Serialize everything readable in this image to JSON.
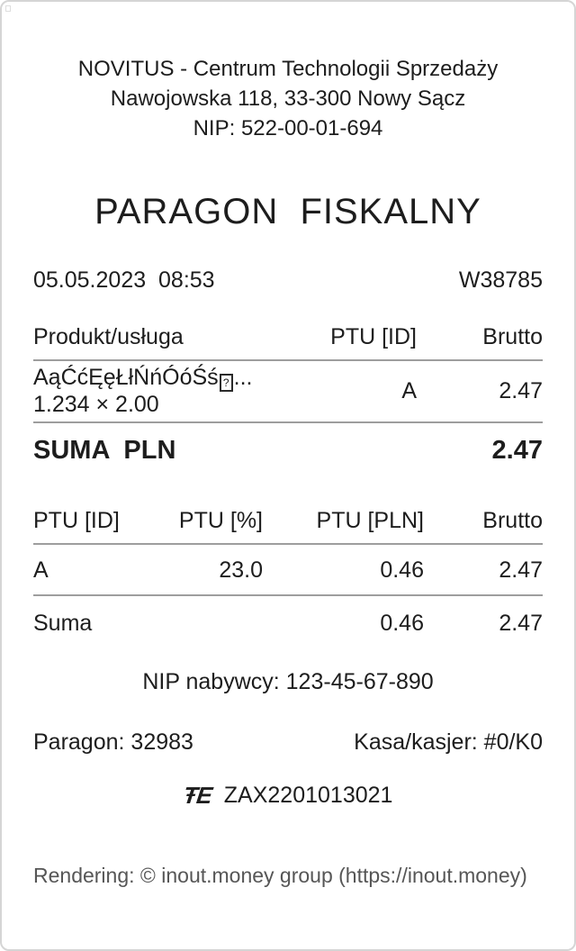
{
  "receipt": {
    "header": {
      "line1": "NOVITUS - Centrum Technologii Sprzedaży",
      "line2": "Nawojowska 118, 33-300 Nowy Sącz",
      "line3": "NIP: 522-00-01-694"
    },
    "title": "PARAGON  FISKALNY",
    "datetime": "05.05.2023  08:53",
    "receipt_no": "W38785",
    "items_table": {
      "headers": [
        "Produkt/usługa",
        "PTU [ID]",
        "Brutto"
      ],
      "item": {
        "name": "AąĆćĘęŁłŃńÓóŚś",
        "missing_glyph": "?",
        "name_suffix": "...",
        "qty_price": "1.234 × 2.00",
        "ptu": "A",
        "brutto": "2.47"
      }
    },
    "suma": {
      "label": "SUMA  PLN",
      "value": "2.47"
    },
    "ptu_table": {
      "headers": [
        "PTU [ID]",
        "PTU [%]",
        "PTU [PLN]",
        "Brutto"
      ],
      "rows": [
        [
          "A",
          "23.0",
          "0.46",
          "2.47"
        ],
        [
          "Suma",
          "",
          "0.46",
          "2.47"
        ]
      ]
    },
    "nip_nabywcy": "NIP nabywcy: 123-45-67-890",
    "paragon_no": "Paragon: 32983",
    "kasa_kasjer": "Kasa/kasjer: #0/K0",
    "fiscal": {
      "logo_glyph": "ŦE",
      "number": "ZAX2201013021"
    },
    "footer": "Rendering: © inout.money group (https://inout.money)",
    "colors": {
      "rule": "#9e9e9e",
      "border": "#d5d5d5",
      "footer_text": "#565656"
    }
  }
}
